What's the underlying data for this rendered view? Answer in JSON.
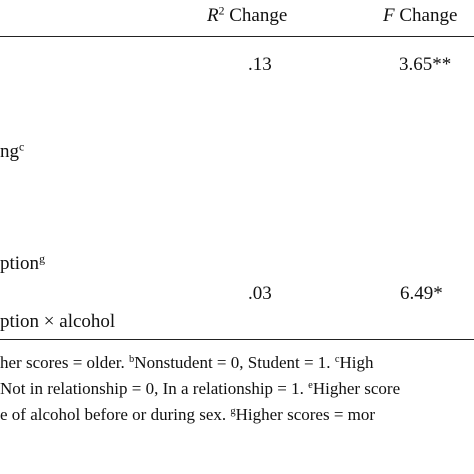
{
  "header": {
    "columns": [
      [
        {
          "text": "R",
          "italic": true
        },
        {
          "text": "2",
          "sup": true
        },
        {
          "text": " Change"
        }
      ],
      [
        {
          "text": "F",
          "italic": true
        },
        {
          "text": " Change"
        }
      ]
    ]
  },
  "rows": [
    {
      "label": [],
      "cells": [
        ".13",
        "3.65**"
      ]
    },
    {
      "label": [
        {
          "text": "ng"
        },
        {
          "text": "c",
          "sup": true
        }
      ],
      "cells": []
    },
    {
      "label": [
        {
          "text": "ption"
        },
        {
          "text": "g",
          "sup": true
        }
      ],
      "cells": []
    },
    {
      "label": [],
      "cells": [
        ".03",
        "6.49*"
      ]
    },
    {
      "label": [
        {
          "text": "ption × alcohol"
        }
      ],
      "cells": []
    }
  ],
  "footnotes": [
    [
      {
        "text": "her scores = older. "
      },
      {
        "text": "b",
        "sup": true
      },
      {
        "text": "Nonstudent = 0, Student = 1. "
      },
      {
        "text": "c",
        "sup": true
      },
      {
        "text": "High"
      }
    ],
    [
      {
        "text": "Not in relationship = 0, In a relationship = 1. "
      },
      {
        "text": "e",
        "sup": true
      },
      {
        "text": "Higher score"
      }
    ],
    [
      {
        "text": "e of alcohol before or during sex. "
      },
      {
        "text": "g",
        "sup": true
      },
      {
        "text": "Higher scores = mor"
      }
    ]
  ]
}
